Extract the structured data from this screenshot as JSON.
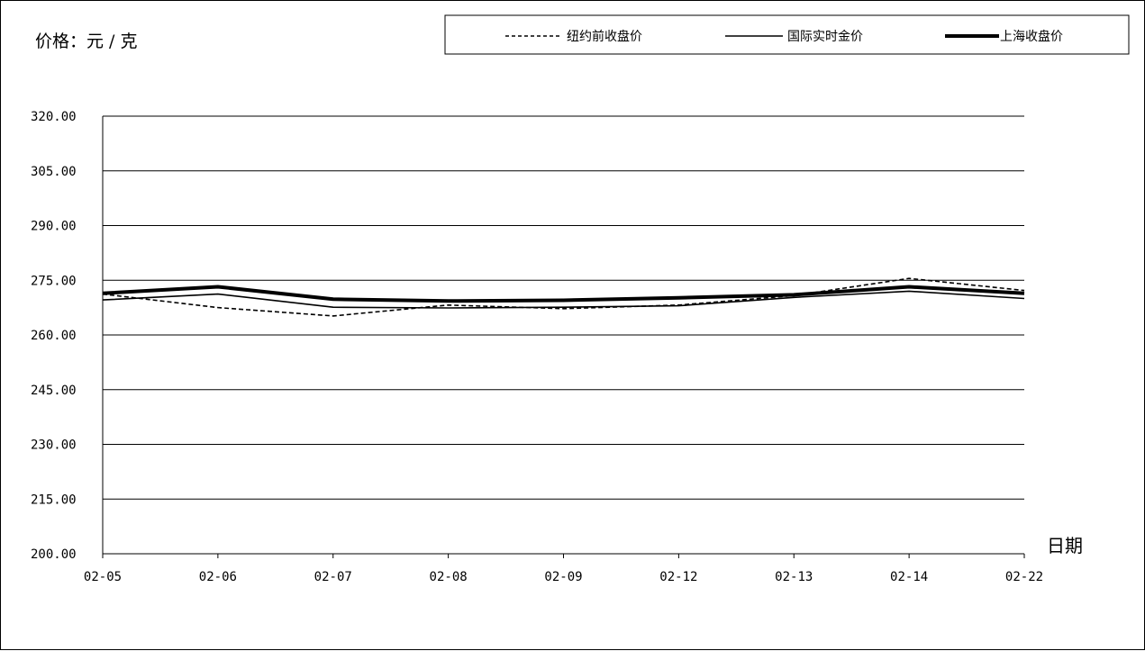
{
  "chart_data": {
    "type": "line",
    "title": "",
    "unit_label": "价格：元 / 克",
    "xlabel": "日期",
    "ylabel": "价格：元 / 克",
    "categories": [
      "02-05",
      "02-06",
      "02-07",
      "02-08",
      "02-09",
      "02-12",
      "02-13",
      "02-14",
      "02-22"
    ],
    "y_ticks": [
      "200.00",
      "215.00",
      "230.00",
      "245.00",
      "260.00",
      "275.00",
      "290.00",
      "305.00",
      "320.00"
    ],
    "ylim": [
      200,
      320
    ],
    "grid": true,
    "legend_position": "top-right",
    "series": [
      {
        "name": "纽约前收盘价",
        "style": "dashed",
        "color": "#000000",
        "values": [
          271.2,
          267.5,
          265.2,
          268.2,
          267.2,
          268.2,
          270.8,
          275.5,
          272.2
        ]
      },
      {
        "name": "国际实时金价",
        "style": "solid",
        "color": "#000000",
        "values": [
          269.6,
          271.2,
          267.6,
          267.4,
          267.6,
          268.0,
          270.3,
          272.0,
          270.0
        ]
      },
      {
        "name": "上海收盘价",
        "style": "thick",
        "color": "#000000",
        "values": [
          271.4,
          273.2,
          269.8,
          269.3,
          269.5,
          270.2,
          271.0,
          273.2,
          271.4
        ]
      }
    ]
  }
}
